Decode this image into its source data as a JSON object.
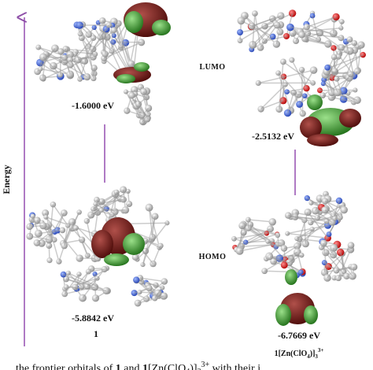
{
  "axis_label": "Energy",
  "orbital_labels": {
    "lumo": "LUMO",
    "homo": "HOMO"
  },
  "compounds": [
    {
      "name": "1",
      "lumo_energy": "-1.6000 eV",
      "homo_energy": "-5.8842 eV"
    },
    {
      "name_parts": [
        "1[Zn(ClO",
        "4",
        ")]",
        "3",
        "3+"
      ],
      "lumo_energy": "-2.5132 eV",
      "homo_energy": "-6.7669 eV"
    }
  ],
  "caption_parts": [
    "the frontier orbitals of ",
    "1",
    " and ",
    "1",
    "[Zn(ClO",
    "4",
    ")]",
    "3",
    "3+",
    " with their i"
  ]
}
